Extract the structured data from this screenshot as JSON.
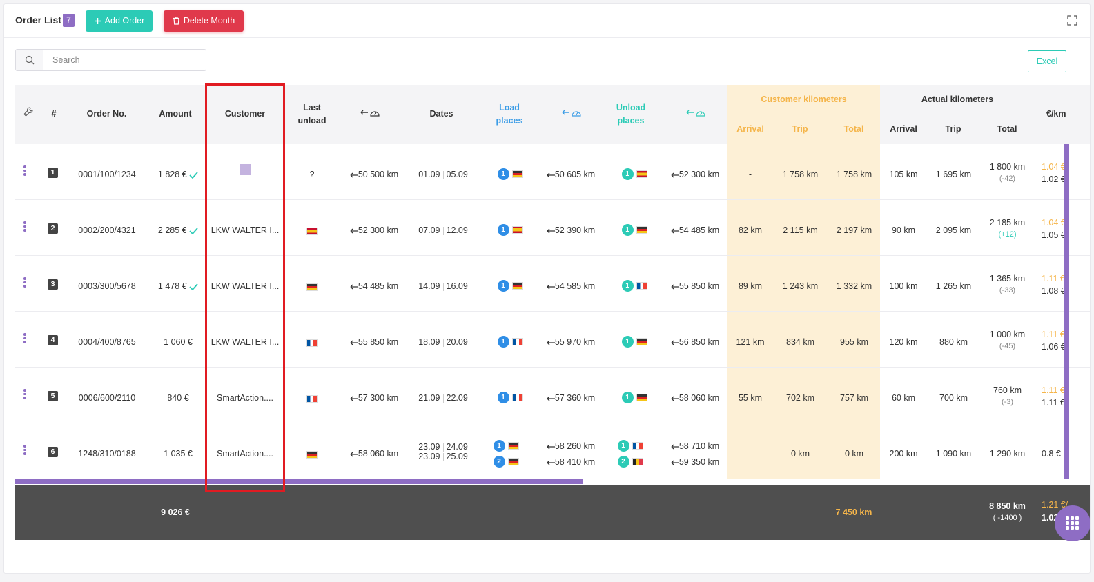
{
  "header": {
    "title": "Order List",
    "count": "7",
    "add_label": "Add Order",
    "delete_label": "Delete Month",
    "excel_label": "Excel"
  },
  "search": {
    "placeholder": "Search"
  },
  "columns": {
    "hash": "#",
    "order_no": "Order No.",
    "amount": "Amount",
    "customer": "Customer",
    "last_unload": [
      "Last",
      "unload"
    ],
    "dates": "Dates",
    "load_places": [
      "Load",
      "places"
    ],
    "unload_places": [
      "Unload",
      "places"
    ],
    "customer_km": "Customer kilometers",
    "actual_km": "Actual kilometers",
    "arrival": "Arrival",
    "trip": "Trip",
    "total": "Total",
    "eur_km": "€/km"
  },
  "rows": [
    {
      "idx": "1",
      "order": "0001/100/1234",
      "amount": "1 828 €",
      "paid": true,
      "customer": "",
      "last_unload": "?",
      "last_flag": "",
      "km_start": "50 500 km",
      "date_a": "01.09",
      "date_b": "05.09",
      "load": [
        {
          "n": "1",
          "flag": "de",
          "km": "50 605 km"
        }
      ],
      "unload": [
        {
          "n": "1",
          "flag": "es",
          "km": "52 300 km"
        }
      ],
      "c_arrival": "-",
      "c_trip": "1 758 km",
      "c_total": "1 758 km",
      "a_arrival": "105 km",
      "a_trip": "1 695 km",
      "a_total": "1 800 km",
      "a_diff": "(-42)",
      "eur1": "1.04 €",
      "eur2": "1.02 €"
    },
    {
      "idx": "2",
      "order": "0002/200/4321",
      "amount": "2 285 €",
      "paid": true,
      "customer": "LKW WALTER I...",
      "last_unload": "",
      "last_flag": "es",
      "km_start": "52 300 km",
      "date_a": "07.09",
      "date_b": "12.09",
      "load": [
        {
          "n": "1",
          "flag": "es",
          "km": "52 390 km"
        }
      ],
      "unload": [
        {
          "n": "1",
          "flag": "de",
          "km": "54 485 km"
        }
      ],
      "c_arrival": "82 km",
      "c_trip": "2 115 km",
      "c_total": "2 197 km",
      "a_arrival": "90 km",
      "a_trip": "2 095 km",
      "a_total": "2 185 km",
      "a_diff": "(+12)",
      "eur1": "1.04 €",
      "eur2": "1.05 €"
    },
    {
      "idx": "3",
      "order": "0003/300/5678",
      "amount": "1 478 €",
      "paid": true,
      "customer": "LKW WALTER I...",
      "last_unload": "",
      "last_flag": "de",
      "km_start": "54 485 km",
      "date_a": "14.09",
      "date_b": "16.09",
      "load": [
        {
          "n": "1",
          "flag": "de",
          "km": "54 585 km"
        }
      ],
      "unload": [
        {
          "n": "1",
          "flag": "fr",
          "km": "55 850 km"
        }
      ],
      "c_arrival": "89 km",
      "c_trip": "1 243 km",
      "c_total": "1 332 km",
      "a_arrival": "100 km",
      "a_trip": "1 265 km",
      "a_total": "1 365 km",
      "a_diff": "(-33)",
      "eur1": "1.11 €",
      "eur2": "1.08 €"
    },
    {
      "idx": "4",
      "order": "0004/400/8765",
      "amount": "1 060 €",
      "paid": false,
      "customer": "LKW WALTER I...",
      "last_unload": "",
      "last_flag": "fr",
      "km_start": "55 850 km",
      "date_a": "18.09",
      "date_b": "20.09",
      "load": [
        {
          "n": "1",
          "flag": "fr",
          "km": "55 970 km"
        }
      ],
      "unload": [
        {
          "n": "1",
          "flag": "de",
          "km": "56 850 km"
        }
      ],
      "c_arrival": "121 km",
      "c_trip": "834 km",
      "c_total": "955 km",
      "a_arrival": "120 km",
      "a_trip": "880 km",
      "a_total": "1 000 km",
      "a_diff": "(-45)",
      "eur1": "1.11 €",
      "eur2": "1.06 €"
    },
    {
      "idx": "5",
      "order": "0006/600/2110",
      "amount": "840 €",
      "paid": false,
      "customer": "SmartAction....",
      "last_unload": "",
      "last_flag": "fr",
      "km_start": "57 300 km",
      "date_a": "21.09",
      "date_b": "22.09",
      "load": [
        {
          "n": "1",
          "flag": "fr",
          "km": "57 360 km"
        }
      ],
      "unload": [
        {
          "n": "1",
          "flag": "de",
          "km": "58 060 km"
        }
      ],
      "c_arrival": "55 km",
      "c_trip": "702 km",
      "c_total": "757 km",
      "a_arrival": "60 km",
      "a_trip": "700 km",
      "a_total": "760 km",
      "a_diff": "(-3)",
      "eur1": "1.11 €",
      "eur2": "1.11 €"
    },
    {
      "idx": "6",
      "order": "1248/310/0188",
      "amount": "1 035 €",
      "paid": false,
      "customer": "SmartAction....",
      "last_unload": "",
      "last_flag": "de",
      "km_start": "58 060 km",
      "date_a": "23.09",
      "date_b": "24.09",
      "date_c": "23.09",
      "date_d": "25.09",
      "load": [
        {
          "n": "1",
          "flag": "de",
          "km": "58 260 km"
        },
        {
          "n": "2",
          "flag": "de",
          "km": "58 410 km"
        }
      ],
      "unload": [
        {
          "n": "1",
          "flag": "fr",
          "km": "58 710 km"
        },
        {
          "n": "2",
          "flag": "be",
          "km": "59 350 km"
        }
      ],
      "c_arrival": "-",
      "c_trip": "0 km",
      "c_total": "0 km",
      "a_arrival": "200 km",
      "a_trip": "1 090 km",
      "a_total": "1 290 km",
      "a_diff": "",
      "eur1": "",
      "eur2": "0.8 €"
    }
  ],
  "footer": {
    "amount": "9 026 €",
    "c_total": "7 450 km",
    "a_total": "8 850 km",
    "a_diff": "( -1400 )",
    "eur1": "1.21 €/",
    "eur2": "1.02"
  },
  "colors": {
    "accent": "#8e6dc4",
    "teal": "#2ccbb6",
    "danger": "#e0394b",
    "orange": "#f5b54a",
    "blue": "#2f8ee6"
  }
}
